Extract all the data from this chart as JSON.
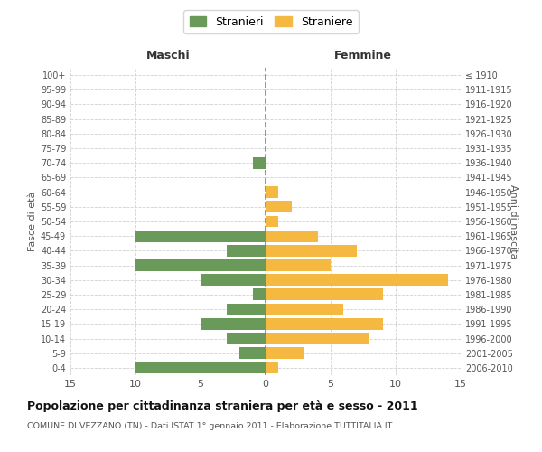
{
  "age_groups": [
    "100+",
    "95-99",
    "90-94",
    "85-89",
    "80-84",
    "75-79",
    "70-74",
    "65-69",
    "60-64",
    "55-59",
    "50-54",
    "45-49",
    "40-44",
    "35-39",
    "30-34",
    "25-29",
    "20-24",
    "15-19",
    "10-14",
    "5-9",
    "0-4"
  ],
  "birth_years": [
    "≤ 1910",
    "1911-1915",
    "1916-1920",
    "1921-1925",
    "1926-1930",
    "1931-1935",
    "1936-1940",
    "1941-1945",
    "1946-1950",
    "1951-1955",
    "1956-1960",
    "1961-1965",
    "1966-1970",
    "1971-1975",
    "1976-1980",
    "1981-1985",
    "1986-1990",
    "1991-1995",
    "1996-2000",
    "2001-2005",
    "2006-2010"
  ],
  "maschi": [
    0,
    0,
    0,
    0,
    0,
    0,
    1,
    0,
    0,
    0,
    0,
    10,
    3,
    10,
    5,
    1,
    3,
    5,
    3,
    2,
    10
  ],
  "femmine": [
    0,
    0,
    0,
    0,
    0,
    0,
    0,
    0,
    1,
    2,
    1,
    4,
    7,
    5,
    14,
    9,
    6,
    9,
    8,
    3,
    1
  ],
  "maschi_color": "#6a9a5a",
  "femmine_color": "#f5b942",
  "background_color": "#ffffff",
  "grid_color": "#cccccc",
  "zero_line_color": "#888855",
  "title": "Popolazione per cittadinanza straniera per età e sesso - 2011",
  "subtitle": "COMUNE DI VEZZANO (TN) - Dati ISTAT 1° gennaio 2011 - Elaborazione TUTTITALIA.IT",
  "xlabel_left": "Maschi",
  "xlabel_right": "Femmine",
  "ylabel_left": "Fasce di età",
  "ylabel_right": "Anni di nascita",
  "legend_stranieri": "Stranieri",
  "legend_straniere": "Straniere",
  "xlim": 15,
  "bar_height": 0.8
}
